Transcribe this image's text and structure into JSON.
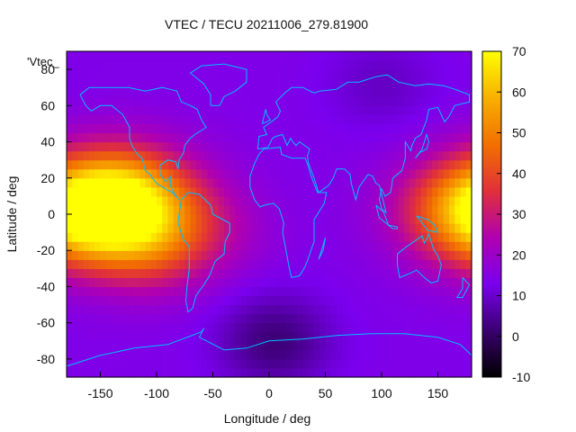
{
  "chart_data": {
    "type": "heatmap",
    "title": "VTEC / TECU 20211006_279.81900",
    "xlabel": "Longitude / deg",
    "ylabel": "Latitude / deg",
    "xlim": [
      -180,
      180
    ],
    "ylim": [
      -90,
      90
    ],
    "x_ticks": [
      -150,
      -100,
      -50,
      0,
      50,
      100,
      150
    ],
    "y_ticks": [
      -80,
      -60,
      -40,
      -20,
      0,
      20,
      40,
      60,
      80
    ],
    "colorbar": {
      "range": [
        -10,
        70
      ],
      "ticks": [
        -10,
        0,
        10,
        20,
        30,
        40,
        50,
        60,
        70
      ],
      "palette": [
        "#000000",
        "#3a0070",
        "#7a00ee",
        "#b000b0",
        "#e0303a",
        "#f27000",
        "#f8b000",
        "#ffff00"
      ]
    },
    "legend_label": "'Vtec_",
    "coastline_color": "#00bfff",
    "grid": false,
    "field_features": [
      {
        "lon": -130,
        "lat": 8,
        "amplitude": 50
      },
      {
        "lon": -160,
        "lat": -8,
        "amplitude": 12
      },
      {
        "lon": -105,
        "lat": -18,
        "amplitude": 18
      },
      {
        "lon": -50,
        "lat": -10,
        "amplitude": 8
      },
      {
        "lon": 178,
        "lat": 2,
        "amplitude": 30
      },
      {
        "lon": 5,
        "lat": -70,
        "amplitude": -12
      },
      {
        "lon": 100,
        "lat": 72,
        "amplitude": -5
      }
    ],
    "background_vtec": 14
  }
}
